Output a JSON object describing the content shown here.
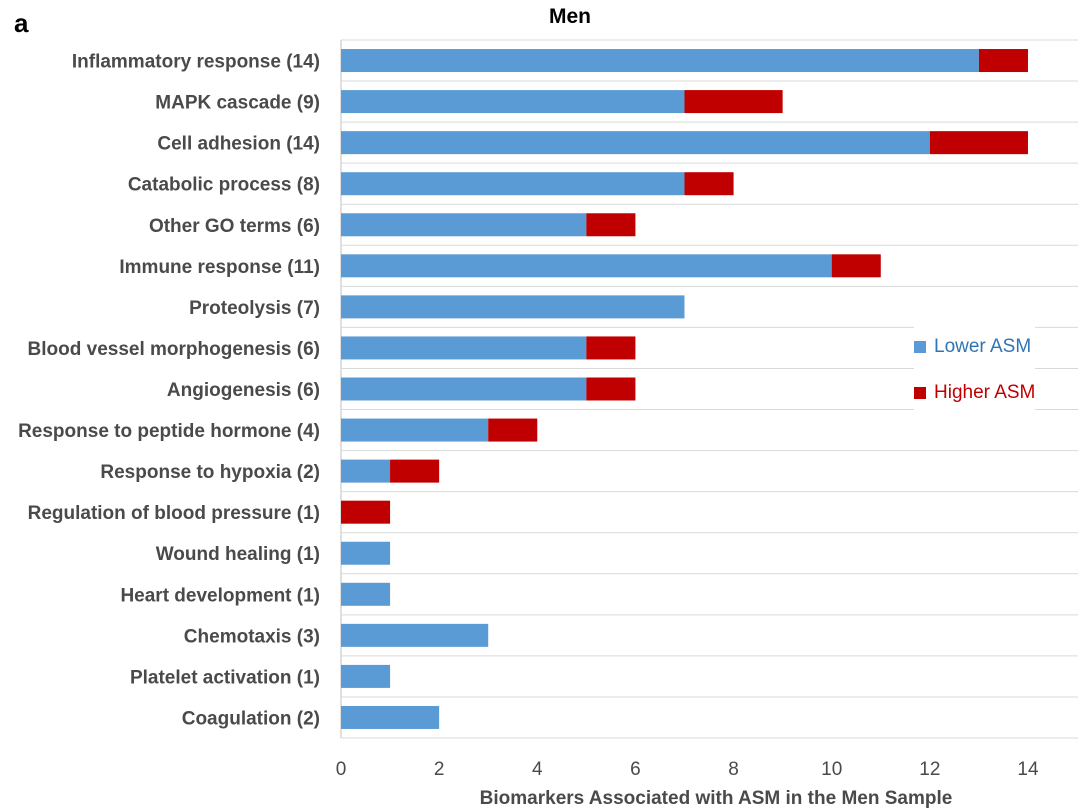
{
  "panel_label": "a",
  "chart_data": {
    "type": "bar",
    "orientation": "horizontal",
    "stacked": true,
    "title": "Men",
    "xlabel": "Biomarkers Associated with ASM in the Men Sample",
    "ylabel": "",
    "xlim": [
      0,
      15
    ],
    "xticks": [
      0,
      2,
      4,
      6,
      8,
      10,
      12,
      14
    ],
    "grid": "horizontal separators",
    "legend_position": "right",
    "categories": [
      "Inflammatory response (14)",
      "MAPK cascade (9)",
      "Cell adhesion (14)",
      "Catabolic process (8)",
      "Other GO terms (6)",
      "Immune response (11)",
      "Proteolysis (7)",
      "Blood vessel morphogenesis (6)",
      "Angiogenesis (6)",
      "Response to peptide hormone (4)",
      "Response to hypoxia (2)",
      "Regulation of blood pressure (1)",
      "Wound healing (1)",
      "Heart development (1)",
      "Chemotaxis (3)",
      "Platelet activation (1)",
      "Coagulation (2)"
    ],
    "series": [
      {
        "name": "Lower ASM",
        "color": "#5b9bd5",
        "text_color": "#2f75b5",
        "values": [
          13,
          7,
          12,
          7,
          5,
          10,
          7,
          5,
          5,
          3,
          1,
          0,
          1,
          1,
          3,
          1,
          2
        ]
      },
      {
        "name": "Higher ASM",
        "color": "#c00000",
        "text_color": "#c00000",
        "values": [
          1,
          2,
          2,
          1,
          1,
          1,
          0,
          1,
          1,
          1,
          1,
          1,
          0,
          0,
          0,
          0,
          0
        ]
      }
    ]
  }
}
